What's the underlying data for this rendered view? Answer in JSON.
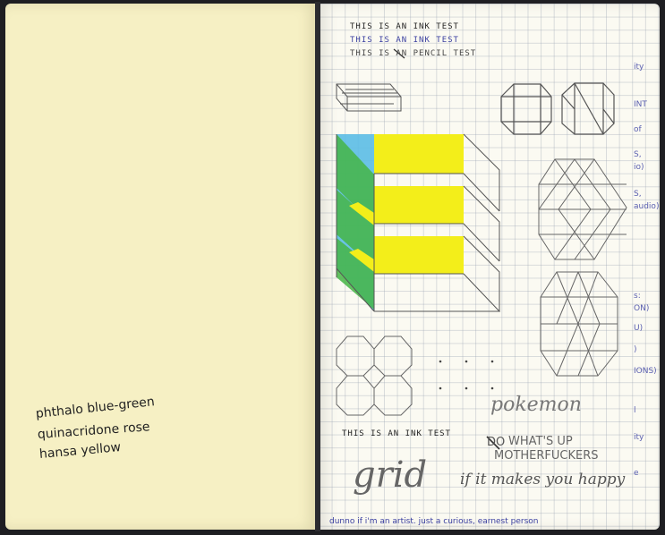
{
  "left_page": {
    "paint_labels": [
      "phthalo blue-green",
      "quinacridone rose",
      "hansa yellow"
    ]
  },
  "right_page": {
    "ink_tests": [
      "THIS IS AN INK TEST",
      "THIS IS AN INK TEST",
      "THIS IS AN PENCIL TEST"
    ],
    "struck_word": "AN",
    "bottom_ink_test": "THIS IS AN INK TEST",
    "pokemon": "pokemon",
    "whats_up_strike": "DO",
    "whats_up_line1": "WHAT'S UP",
    "whats_up_line2": "MOTHERFUCKERS",
    "grid_word": "grid",
    "happy": "if it makes you happy",
    "footer": "dunno if i'm an artist. just a curious, earnest person",
    "margin_notes": [
      "ity",
      "INT",
      "of",
      "S,",
      "io)",
      "S,",
      "audio)",
      "s:",
      "ON)",
      "U)",
      ")",
      "IONS)",
      "l",
      "ity",
      "e"
    ]
  },
  "colors": {
    "yellow": "#f3ee1a",
    "green": "#45b545",
    "blue": "#5bbde6",
    "pencil": "#555",
    "ink_blue": "#3a3fa0"
  }
}
